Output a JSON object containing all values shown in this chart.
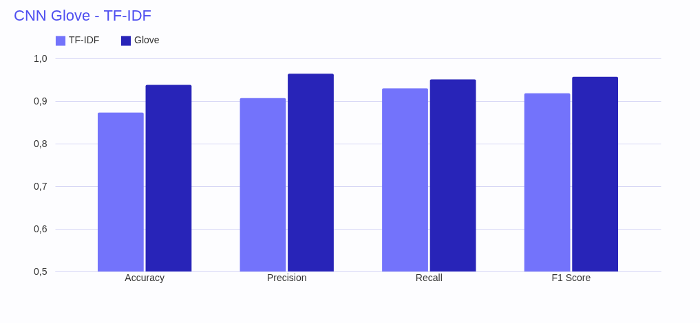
{
  "chart_data": {
    "type": "bar",
    "title": "CNN Glove - TF-IDF",
    "categories": [
      "Accuracy",
      "Precision",
      "Recall",
      "F1 Score"
    ],
    "series": [
      {
        "name": "TF-IDF",
        "color": "#7373fb",
        "values": [
          0.873,
          0.907,
          0.93,
          0.918
        ]
      },
      {
        "name": "Glove",
        "color": "#2824b8",
        "values": [
          0.938,
          0.964,
          0.951,
          0.957
        ]
      }
    ],
    "ylim": [
      0.5,
      1.0
    ],
    "yticks": [
      {
        "value": 0.5,
        "label": "0,5"
      },
      {
        "value": 0.6,
        "label": "0,6"
      },
      {
        "value": 0.7,
        "label": "0,7"
      },
      {
        "value": 0.8,
        "label": "0,8"
      },
      {
        "value": 0.9,
        "label": "0,9"
      },
      {
        "value": 1.0,
        "label": "1,0"
      }
    ],
    "grid": "y",
    "legend": "top"
  }
}
